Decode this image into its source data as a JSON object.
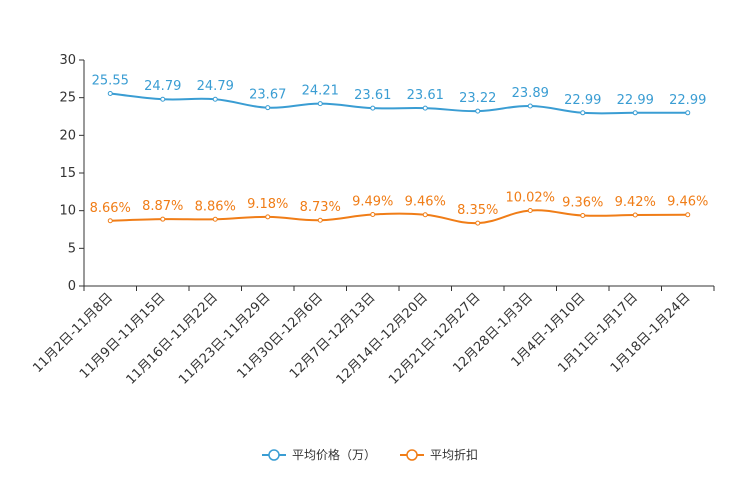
{
  "chart_data": {
    "type": "line",
    "title": "",
    "xlabel": "",
    "ylabel": "",
    "ylim": [
      0,
      30
    ],
    "yticks": [
      0,
      5,
      10,
      15,
      20,
      25,
      30
    ],
    "grid": false,
    "legend_position": "bottom-center",
    "categories": [
      "11月2日-11月8日",
      "11月9日-11月15日",
      "11月16日-11月22日",
      "11月23日-11月29日",
      "11月30日-12月6日",
      "12月7日-12月13日",
      "12月14日-12月20日",
      "12月21日-12月27日",
      "12月28日-1月3日",
      "1月4日-1月10日",
      "1月11日-1月17日",
      "1月18日-1月24日"
    ],
    "series": [
      {
        "name": "平均价格（万）",
        "color": "#3a9dd3",
        "values": [
          25.55,
          24.79,
          24.79,
          23.67,
          24.21,
          23.61,
          23.61,
          23.22,
          23.89,
          22.99,
          22.99,
          22.99
        ],
        "labels": [
          "25.55",
          "24.79",
          "24.79",
          "23.67",
          "24.21",
          "23.61",
          "23.61",
          "23.22",
          "23.89",
          "22.99",
          "22.99",
          "22.99"
        ]
      },
      {
        "name": "平均折扣",
        "color": "#f07d17",
        "values": [
          8.66,
          8.87,
          8.86,
          9.18,
          8.73,
          9.49,
          9.46,
          8.35,
          10.02,
          9.36,
          9.42,
          9.46
        ],
        "labels": [
          "8.66%",
          "8.87%",
          "8.86%",
          "9.18%",
          "8.73%",
          "9.49%",
          "9.46%",
          "8.35%",
          "10.02%",
          "9.36%",
          "9.42%",
          "9.46%"
        ]
      }
    ]
  }
}
